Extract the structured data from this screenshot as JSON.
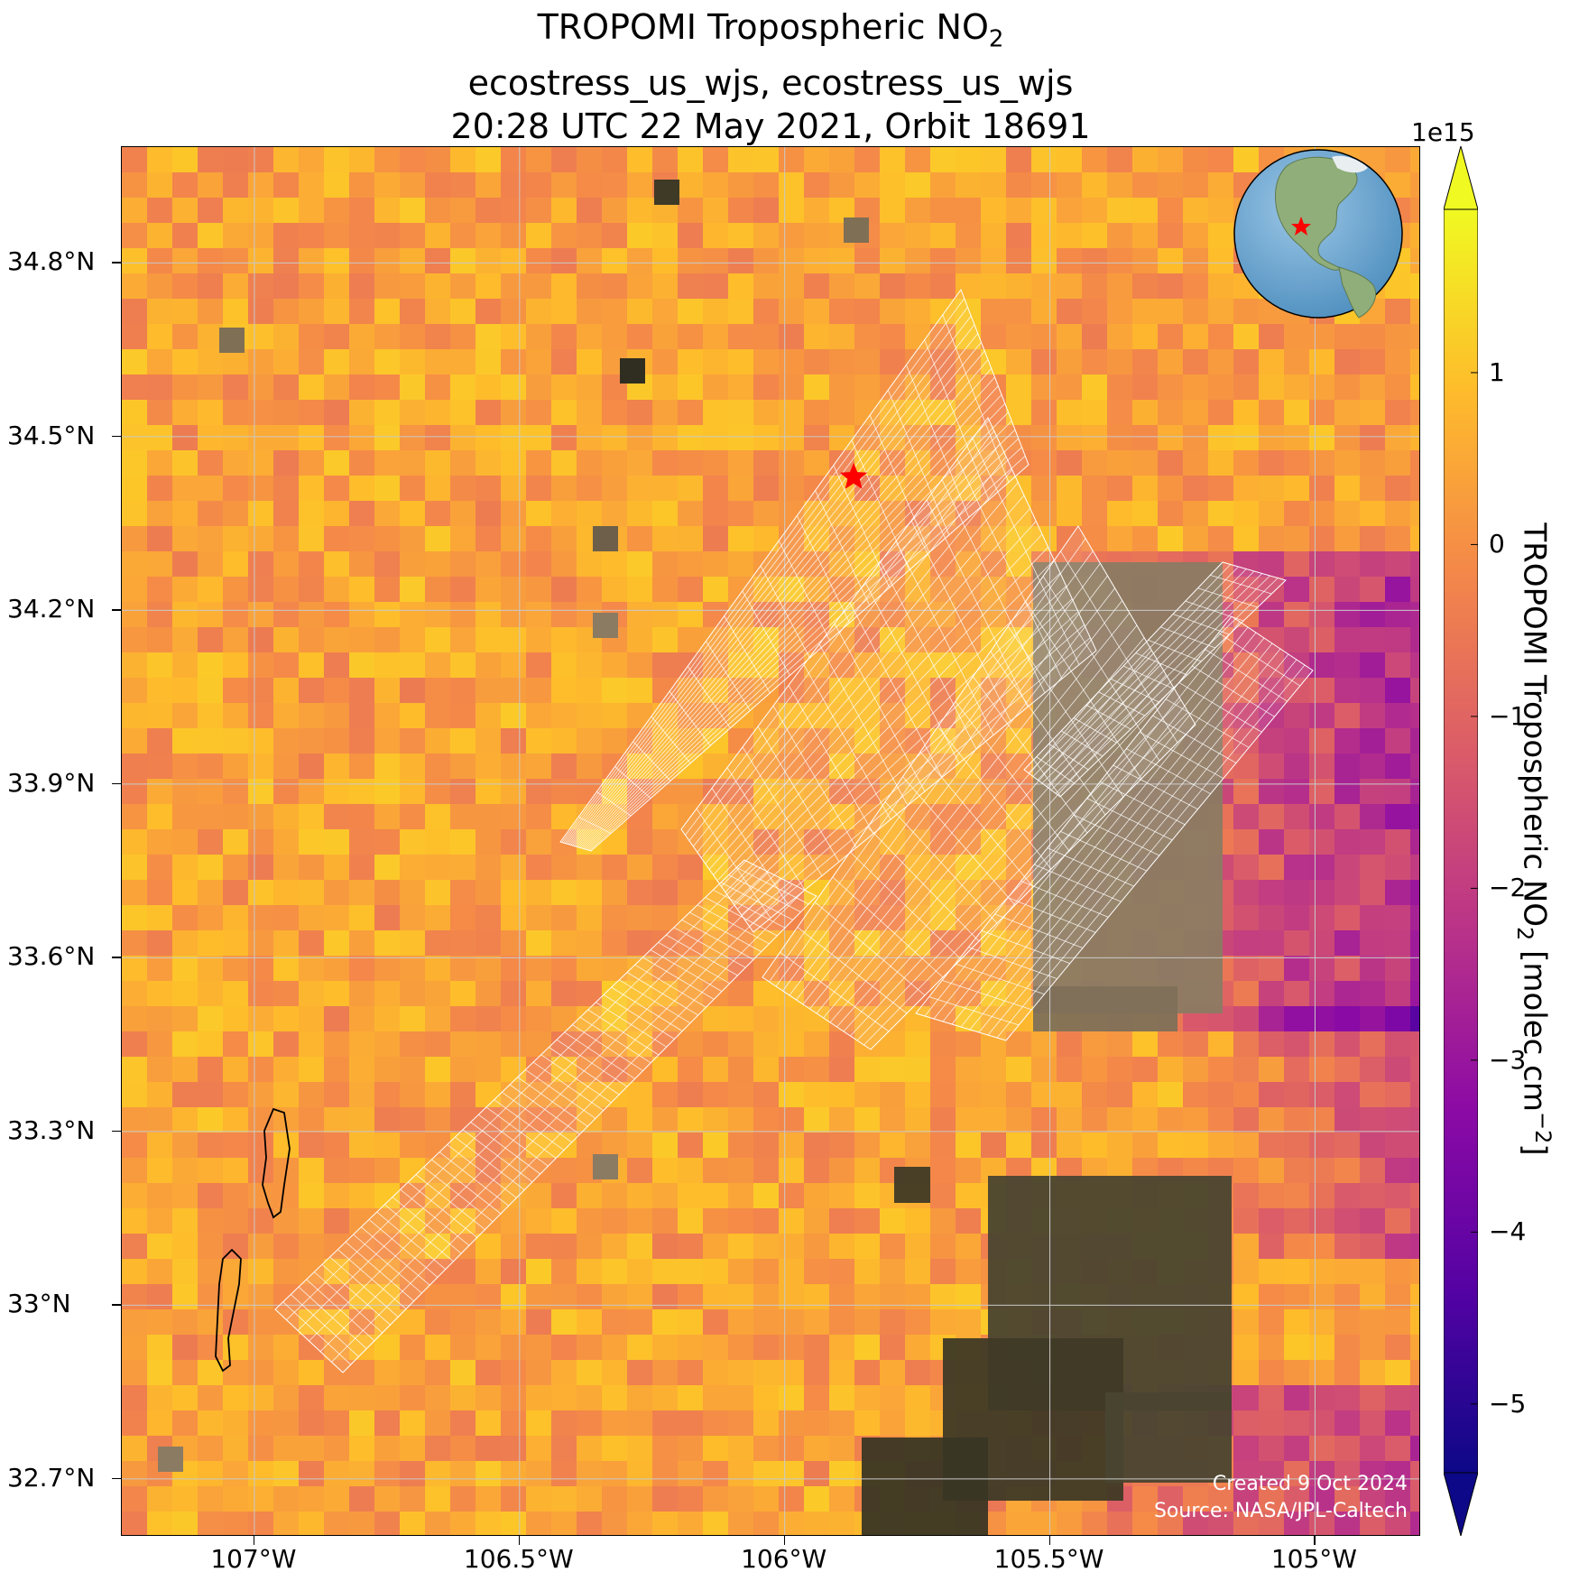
{
  "title": {
    "line1_prefix": "TROPOMI Tropospheric NO",
    "line1_sub": "2",
    "line2": "ecostress_us_wjs, ecostress_us_wjs",
    "line3": "20:28 UTC 22 May 2021, Orbit 18691"
  },
  "axes": {
    "lat_labels": [
      "34.8°N",
      "34.5°N",
      "34.2°N",
      "33.9°N",
      "33.6°N",
      "33.3°N",
      "33°N",
      "32.7°N"
    ],
    "lon_labels": [
      "107°W",
      "106.5°W",
      "106°W",
      "105.5°W",
      "105°W"
    ],
    "lat_values": [
      34.8,
      34.5,
      34.2,
      33.9,
      33.6,
      33.3,
      33.0,
      32.7
    ],
    "lon_values": [
      -107.0,
      -106.5,
      -106.0,
      -105.5,
      -105.0
    ],
    "extent": {
      "lon_min": -107.25,
      "lon_max": -104.8,
      "lat_min": 32.6,
      "lat_max": 35.0
    },
    "grid": true
  },
  "colorbar": {
    "label_prefix": "TROPOMI Tropospheric NO",
    "label_sub": "2",
    "label_suffix": " [molec cm",
    "label_sup": "−2",
    "label_end": "]",
    "exponent": "1e15",
    "ticks": [
      "1",
      "0",
      "−1",
      "−2",
      "−3",
      "−4",
      "−5"
    ],
    "tick_values": [
      1,
      0,
      -1,
      -2,
      -3,
      -4,
      -5
    ],
    "range": [
      -5.4,
      1.95
    ],
    "colormap": "plasma",
    "extend": "both"
  },
  "marker": {
    "type": "star",
    "color": "#ff0000",
    "lon": -105.87,
    "lat": 34.43
  },
  "inset_globe": {
    "marker_color": "#ff0000"
  },
  "credits": {
    "line1": "Created 9 Oct 2024",
    "line2": "Source: NASA/JPL-Caltech"
  },
  "colors": {
    "ocean": "#6fa6cf",
    "footprint_outline": "#ffffff",
    "lake_outline": "#000000"
  }
}
